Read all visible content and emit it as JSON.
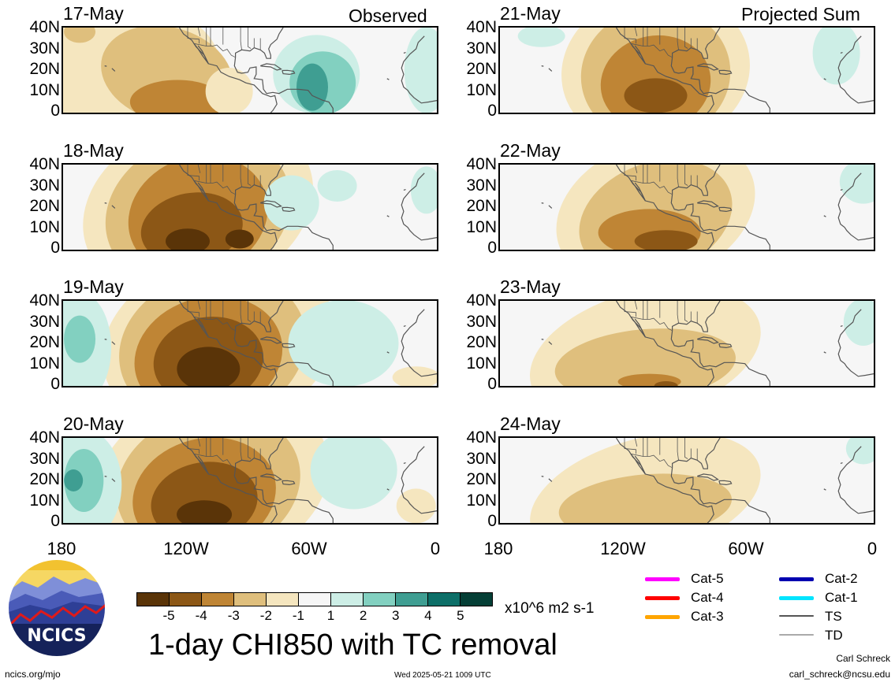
{
  "header": {
    "observed_label": "Observed",
    "projected_label": "Projected Sum"
  },
  "panels_left": [
    {
      "date": "17-May"
    },
    {
      "date": "18-May"
    },
    {
      "date": "19-May"
    },
    {
      "date": "20-May"
    }
  ],
  "panels_right": [
    {
      "date": "21-May"
    },
    {
      "date": "22-May"
    },
    {
      "date": "23-May"
    },
    {
      "date": "24-May"
    }
  ],
  "lat_labels": [
    "40N",
    "30N",
    "20N",
    "10N",
    "0"
  ],
  "lon_labels": [
    "180",
    "120W",
    "60W",
    "0"
  ],
  "colorbar": {
    "colors": [
      "#5a3408",
      "#8c5716",
      "#bf8535",
      "#dfbf7d",
      "#f5e6bf",
      "#f6f6f6",
      "#cdeee6",
      "#82d0c0",
      "#3f9e92",
      "#0d6f68",
      "#053f36"
    ],
    "ticks": [
      "-5",
      "-4",
      "-3",
      "-2",
      "-1",
      "1",
      "2",
      "3",
      "4",
      "5"
    ],
    "units": "x10^6 m2 s-1"
  },
  "title": "1-day CHI850 with TC removal",
  "storm_legend": [
    {
      "label": "Cat-5",
      "color": "#ff00ff"
    },
    {
      "label": "Cat-4",
      "color": "#ff0000"
    },
    {
      "label": "Cat-3",
      "color": "#ffa500"
    },
    {
      "label": "Cat-2",
      "color": "#0000b0"
    },
    {
      "label": "Cat-1",
      "color": "#00e5ff"
    },
    {
      "label": "TS",
      "color": "#555555"
    },
    {
      "label": "TD",
      "color": "#aaaaaa"
    }
  ],
  "logo_text": "NCICS",
  "footer": {
    "url": "ncics.org/mjo",
    "timestamp": "Wed 2025-05-21 1009 UTC",
    "author": "Carl Schreck",
    "email": "carl_schreck@ncsu.edu"
  }
}
